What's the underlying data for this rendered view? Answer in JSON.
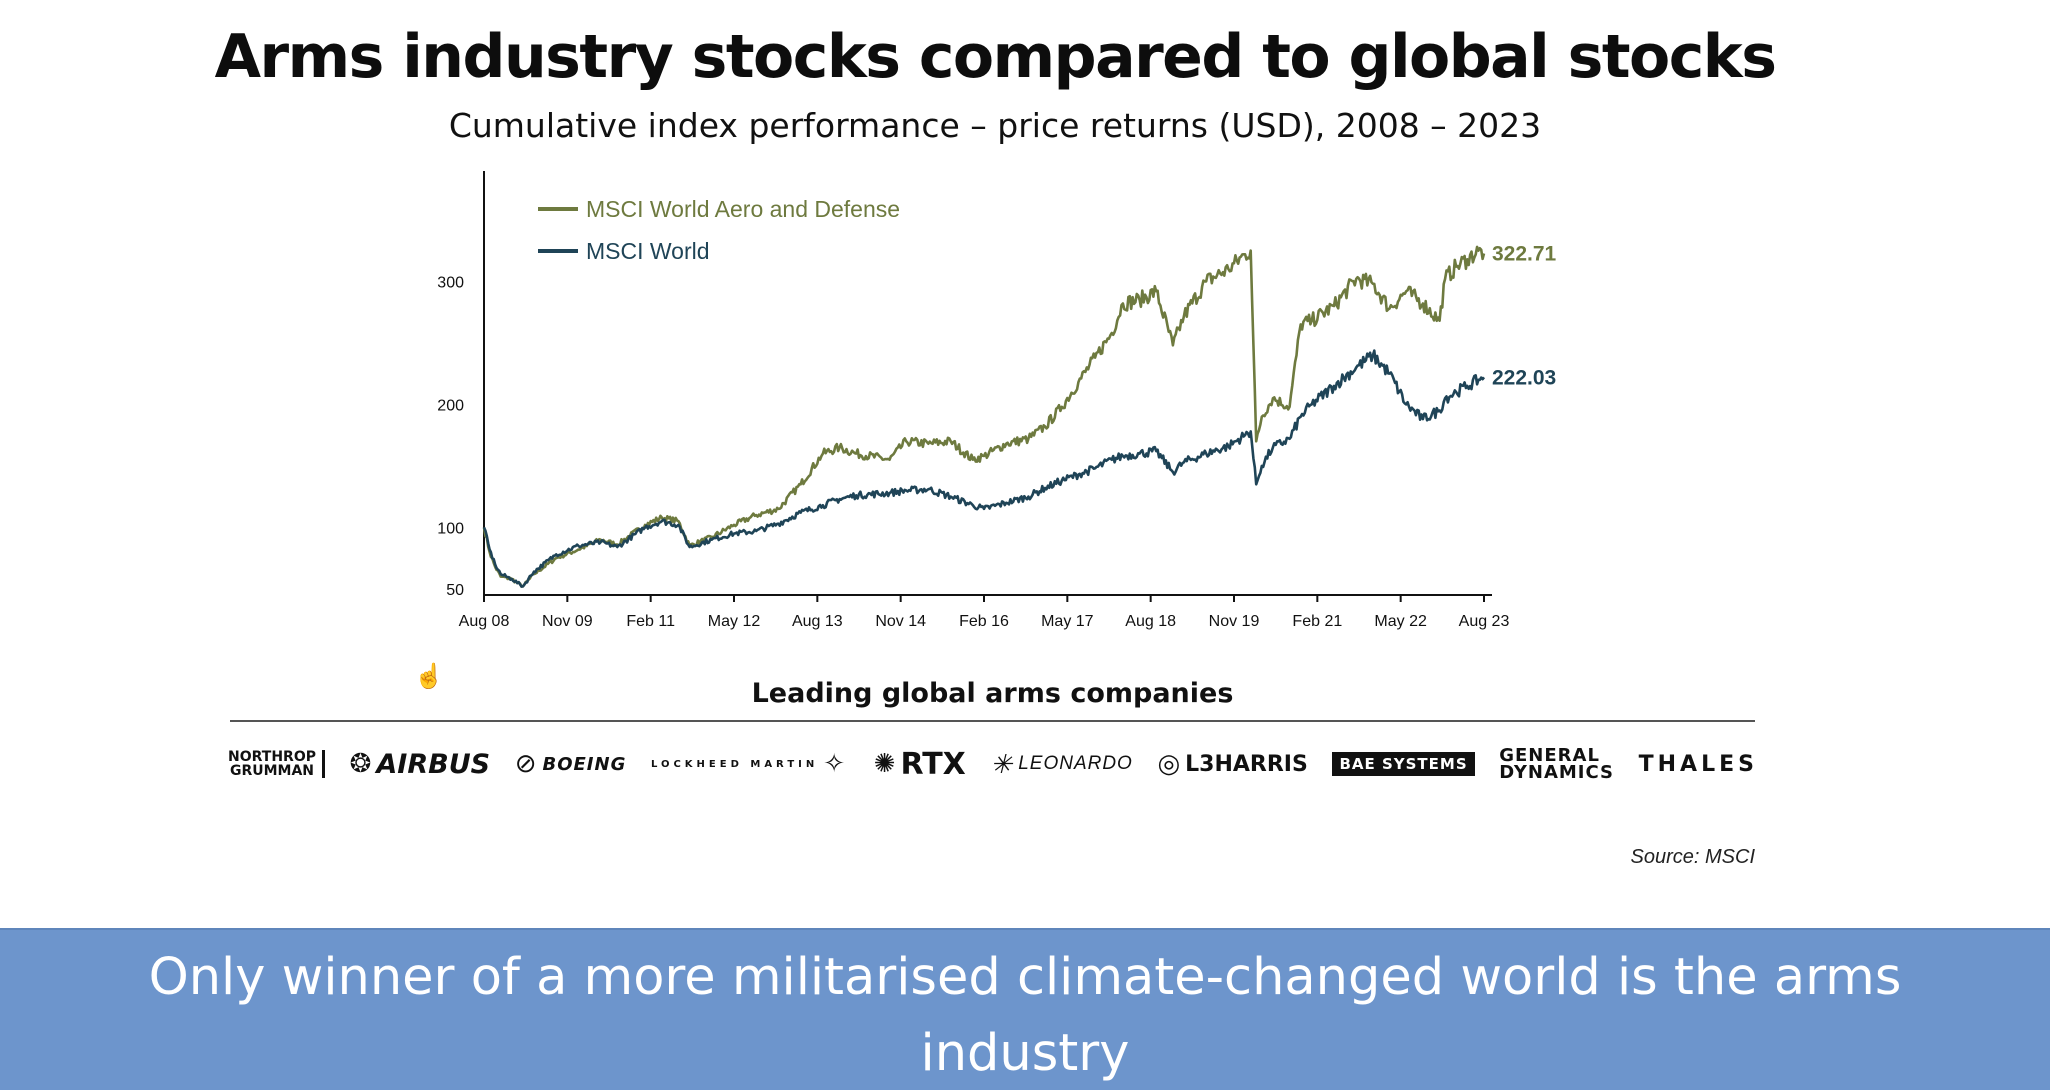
{
  "header": {
    "title": "Arms industry stocks compared to global stocks",
    "subtitle": "Cumulative index performance – price returns (USD), 2008 – 2023"
  },
  "chart_data": {
    "type": "line",
    "title": "Arms industry stocks compared to global stocks",
    "subtitle": "Cumulative index performance – price returns (USD), 2008 – 2023",
    "xlabel": "",
    "ylabel": "",
    "x_tick_labels": [
      "Aug 08",
      "Nov 09",
      "Feb 11",
      "May 12",
      "Aug 13",
      "Nov 14",
      "Feb 16",
      "May 17",
      "Aug 18",
      "Nov 19",
      "Feb 21",
      "May 22",
      "Aug 23"
    ],
    "y_tick_labels": [
      "50",
      "100",
      "200",
      "300"
    ],
    "ylim": [
      45,
      380
    ],
    "grid": false,
    "legend_position": "top-left",
    "series": [
      {
        "name": "MSCI World Aero and Defense",
        "color": "#6e7a3f",
        "end_label": "322.71",
        "x": [
          "2008-08",
          "2008-09",
          "2008-10",
          "2008-11",
          "2009-01",
          "2009-03",
          "2009-05",
          "2009-09",
          "2010-01",
          "2010-05",
          "2010-08",
          "2011-01",
          "2011-04",
          "2011-07",
          "2011-09",
          "2012-01",
          "2012-05",
          "2012-09",
          "2013-01",
          "2013-05",
          "2013-09",
          "2013-12",
          "2014-03",
          "2014-09",
          "2014-12",
          "2015-04",
          "2015-08",
          "2015-12",
          "2016-02",
          "2016-06",
          "2016-10",
          "2017-01",
          "2017-04",
          "2017-07",
          "2017-10",
          "2018-01",
          "2018-03",
          "2018-06",
          "2018-09",
          "2018-12",
          "2019-02",
          "2019-06",
          "2019-10",
          "2020-01",
          "2020-02",
          "2020-03",
          "2020-04",
          "2020-06",
          "2020-09",
          "2020-11",
          "2021-01",
          "2021-05",
          "2021-09",
          "2021-12",
          "2022-03",
          "2022-06",
          "2022-09",
          "2022-12",
          "2023-01",
          "2023-03",
          "2023-05",
          "2023-07",
          "2023-08"
        ],
        "values": [
          100,
          80,
          68,
          60,
          58,
          52,
          62,
          75,
          82,
          90,
          86,
          102,
          108,
          105,
          85,
          92,
          102,
          110,
          115,
          135,
          160,
          165,
          160,
          155,
          170,
          168,
          170,
          155,
          158,
          168,
          172,
          182,
          198,
          218,
          238,
          258,
          282,
          285,
          292,
          248,
          272,
          300,
          310,
          322,
          325,
          170,
          190,
          205,
          198,
          265,
          268,
          280,
          302,
          298,
          278,
          292,
          282,
          268,
          302,
          312,
          318,
          325,
          322.71
        ]
      },
      {
        "name": "MSCI World",
        "color": "#1f4457",
        "end_label": "222.03",
        "x": [
          "2008-08",
          "2008-09",
          "2008-10",
          "2008-11",
          "2009-01",
          "2009-03",
          "2009-05",
          "2009-09",
          "2010-01",
          "2010-05",
          "2010-08",
          "2011-01",
          "2011-04",
          "2011-07",
          "2011-09",
          "2012-01",
          "2012-05",
          "2012-09",
          "2013-01",
          "2013-05",
          "2013-09",
          "2013-12",
          "2014-03",
          "2014-09",
          "2014-12",
          "2015-04",
          "2015-08",
          "2015-12",
          "2016-02",
          "2016-06",
          "2016-10",
          "2017-01",
          "2017-04",
          "2017-07",
          "2017-10",
          "2018-01",
          "2018-03",
          "2018-06",
          "2018-09",
          "2018-12",
          "2019-02",
          "2019-06",
          "2019-10",
          "2020-01",
          "2020-02",
          "2020-03",
          "2020-04",
          "2020-06",
          "2020-09",
          "2020-11",
          "2021-01",
          "2021-05",
          "2021-09",
          "2021-12",
          "2022-03",
          "2022-06",
          "2022-09",
          "2022-12",
          "2023-01",
          "2023-03",
          "2023-05",
          "2023-07",
          "2023-08"
        ],
        "values": [
          100,
          82,
          70,
          62,
          58,
          52,
          64,
          78,
          85,
          88,
          84,
          100,
          105,
          102,
          84,
          90,
          95,
          97,
          103,
          112,
          118,
          123,
          126,
          128,
          130,
          131,
          125,
          118,
          115,
          120,
          125,
          132,
          138,
          143,
          148,
          155,
          158,
          160,
          162,
          145,
          153,
          160,
          166,
          175,
          178,
          135,
          150,
          165,
          172,
          190,
          200,
          215,
          230,
          240,
          225,
          200,
          188,
          195,
          205,
          210,
          215,
          220,
          222.03
        ]
      }
    ]
  },
  "section": {
    "title": "Leading global arms companies",
    "source": "Source: MSCI"
  },
  "logos": {
    "northrop": {
      "line1": "NORTHROP",
      "line2": "GRUMMAN"
    },
    "airbus": "AIRBUS",
    "boeing": "BOEING",
    "lockheed": "LOCKHEED MARTIN",
    "rtx": "RTX",
    "leonardo": "LEONARDO",
    "l3harris": "L3HARRIS",
    "bae": "BAE SYSTEMS",
    "general_dynamics": {
      "line1": "GENERAL",
      "line2": "DYNAMICS"
    },
    "thales": "THALES"
  },
  "caption": {
    "text": "Only winner of a more militarised climate-changed world is the arms industry"
  },
  "icons": {
    "cursor": "hand-cursor-icon"
  }
}
